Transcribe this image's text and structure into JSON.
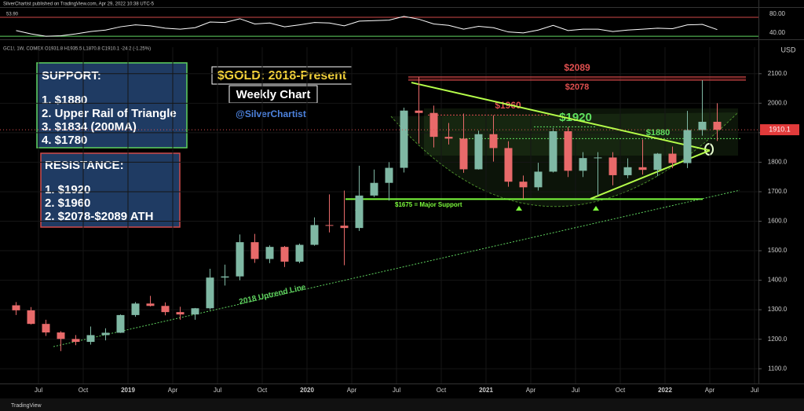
{
  "chart_data": {
    "type": "candlestick",
    "header": "SilverChartist published on TradingView.com, Apr 29, 2022 10:38 UTC-5",
    "legend_text": "GC1!, 1W, COMEX  O1931.8 H1935.5 L1870.8 C1910.1 -24.2 (-1.25%)",
    "footer": "TradingView",
    "currency": "USD",
    "title": "$GOLD: 2018-Present",
    "subtitle": "Weekly Chart",
    "author": "@SilverChartist",
    "support_box": [
      "SUPPORT:",
      "1. $1880",
      "2. Upper Rail of Triangle",
      "3. $1834 (200MA)",
      "4. $1780"
    ],
    "resistance_box": [
      "RESISTANCE:",
      "1. $1920",
      "2.  $1960",
      "2. $2078-$2089 ATH"
    ],
    "last_price": {
      "value": 1910.1,
      "label": "1910.1"
    },
    "up_color": "#7fb8a4",
    "down_color": "#e86a6a",
    "x": [
      "2018-05",
      "2018-06",
      "2018-07",
      "2018-08",
      "2018-09",
      "2018-10",
      "2018-11",
      "2018-12",
      "2019-01",
      "2019-02",
      "2019-03",
      "2019-04",
      "2019-05",
      "2019-06",
      "2019-07",
      "2019-08",
      "2019-09",
      "2019-10",
      "2019-11",
      "2019-12",
      "2020-01",
      "2020-02",
      "2020-03",
      "2020-04",
      "2020-05",
      "2020-06",
      "2020-07",
      "2020-08",
      "2020-09",
      "2020-10",
      "2020-11",
      "2020-12",
      "2021-01",
      "2021-02",
      "2021-03",
      "2021-04",
      "2021-05",
      "2021-06",
      "2021-07",
      "2021-08",
      "2021-09",
      "2021-10",
      "2021-11",
      "2021-12",
      "2022-01",
      "2022-02",
      "2022-03",
      "2022-04"
    ],
    "open": [
      1315,
      1298,
      1252,
      1223,
      1201,
      1191,
      1214,
      1222,
      1282,
      1321,
      1313,
      1292,
      1284,
      1305,
      1409,
      1413,
      1529,
      1472,
      1513,
      1463,
      1520,
      1587,
      1585,
      1577,
      1687,
      1730,
      1781,
      1975,
      1967,
      1886,
      1880,
      1776,
      1895,
      1848,
      1734,
      1715,
      1768,
      1905,
      1771,
      1814,
      1816,
      1756,
      1783,
      1774,
      1829,
      1797,
      1909,
      1937
    ],
    "high": [
      1326,
      1309,
      1266,
      1227,
      1214,
      1243,
      1237,
      1284,
      1326,
      1347,
      1325,
      1310,
      1306,
      1439,
      1453,
      1555,
      1557,
      1518,
      1516,
      1524,
      1613,
      1691,
      1704,
      1788,
      1775,
      1800,
      1985,
      2089,
      1992,
      1933,
      1965,
      1907,
      1959,
      1871,
      1755,
      1798,
      1916,
      1919,
      1834,
      1834,
      1834,
      1813,
      1877,
      1831,
      1853,
      1974,
      2078,
      2000
    ],
    "low": [
      1282,
      1250,
      1211,
      1160,
      1180,
      1182,
      1196,
      1221,
      1276,
      1311,
      1281,
      1266,
      1266,
      1300,
      1382,
      1400,
      1459,
      1458,
      1445,
      1458,
      1517,
      1562,
      1451,
      1567,
      1682,
      1670,
      1765,
      1863,
      1850,
      1860,
      1764,
      1775,
      1802,
      1717,
      1676,
      1704,
      1765,
      1750,
      1750,
      1687,
      1722,
      1746,
      1758,
      1753,
      1780,
      1780,
      1890,
      1872
    ],
    "close": [
      1298,
      1252,
      1223,
      1201,
      1191,
      1214,
      1222,
      1282,
      1321,
      1313,
      1292,
      1284,
      1305,
      1409,
      1413,
      1529,
      1472,
      1513,
      1463,
      1520,
      1587,
      1585,
      1577,
      1687,
      1730,
      1781,
      1975,
      1967,
      1886,
      1880,
      1776,
      1895,
      1848,
      1734,
      1715,
      1768,
      1905,
      1771,
      1814,
      1816,
      1756,
      1783,
      1774,
      1829,
      1797,
      1909,
      1937,
      1910
    ],
    "ylim": [
      1050,
      2190
    ],
    "yticks": [
      {
        "value": 1100,
        "label": "1100.0"
      },
      {
        "value": 1200,
        "label": "1200.0"
      },
      {
        "value": 1300,
        "label": "1300.0"
      },
      {
        "value": 1400,
        "label": "1400.0"
      },
      {
        "value": 1500,
        "label": "1500.0"
      },
      {
        "value": 1600,
        "label": "1600.0"
      },
      {
        "value": 1700,
        "label": "1700.0"
      },
      {
        "value": 1800,
        "label": "1800.0"
      },
      {
        "value": 1900,
        "label": "1900.0"
      },
      {
        "value": 2000,
        "label": "2000.0"
      },
      {
        "value": 2100,
        "label": "2100.0"
      }
    ],
    "xticks": [
      {
        "value": "2018-07",
        "label": "Jul"
      },
      {
        "value": "2018-10",
        "label": "Oct"
      },
      {
        "value": "2019-01",
        "label": "2019"
      },
      {
        "value": "2019-04",
        "label": "Apr"
      },
      {
        "value": "2019-07",
        "label": "Jul"
      },
      {
        "value": "2019-10",
        "label": "Oct"
      },
      {
        "value": "2020-01",
        "label": "2020"
      },
      {
        "value": "2020-04",
        "label": "Apr"
      },
      {
        "value": "2020-07",
        "label": "Jul"
      },
      {
        "value": "2020-10",
        "label": "Oct"
      },
      {
        "value": "2021-01",
        "label": "2021"
      },
      {
        "value": "2021-04",
        "label": "Apr"
      },
      {
        "value": "2021-07",
        "label": "Jul"
      },
      {
        "value": "2021-10",
        "label": "Oct"
      },
      {
        "value": "2022-01",
        "label": "2022"
      },
      {
        "value": "2022-04",
        "label": "Apr"
      },
      {
        "value": "2022-07",
        "label": "Jul"
      }
    ],
    "grid": true,
    "levels": [
      {
        "text": "$2089",
        "value": 2089,
        "color": "#e05050"
      },
      {
        "text": "$2078",
        "value": 2078,
        "color": "#e05050"
      },
      {
        "text": "$1960",
        "value": 1960,
        "color": "#e05050"
      },
      {
        "text": "$1920",
        "value": 1920,
        "color": "#5fe05f"
      },
      {
        "text": "$1880",
        "value": 1880,
        "color": "#5fe05f"
      },
      {
        "text": "$1675 = Major Support",
        "value": 1675,
        "color": "#7cfc3c"
      }
    ],
    "trendlines": [
      {
        "points": [
          [
            "2020-08",
            2070
          ],
          [
            "2022-04",
            1840
          ]
        ],
        "color": "#b6ff4a"
      },
      {
        "points": [
          [
            "2021-08",
            1676
          ],
          [
            "2022-04",
            1840
          ]
        ],
        "color": "#b6ff4a"
      },
      {
        "text": "2018 Uptrend Line",
        "points": [
          [
            "2018-08",
            1175
          ],
          [
            "2022-06",
            1705
          ]
        ],
        "color": "#5fd35f"
      }
    ],
    "rsi": {
      "value_label": "53.90",
      "ylim": [
        36,
        100
      ],
      "yticks": [
        {
          "value": 80,
          "label": "80.00"
        },
        {
          "value": 40,
          "label": "40.00"
        }
      ],
      "values": [
        52,
        45,
        40,
        41,
        45,
        50,
        53,
        60,
        64,
        62,
        57,
        55,
        58,
        70,
        69,
        77,
        66,
        68,
        60,
        64,
        69,
        68,
        62,
        72,
        73,
        74,
        82,
        76,
        66,
        63,
        55,
        61,
        58,
        49,
        47,
        53,
        63,
        52,
        55,
        55,
        50,
        53,
        55,
        57,
        56,
        64,
        65,
        54
      ],
      "color": "#ffffff"
    }
  }
}
